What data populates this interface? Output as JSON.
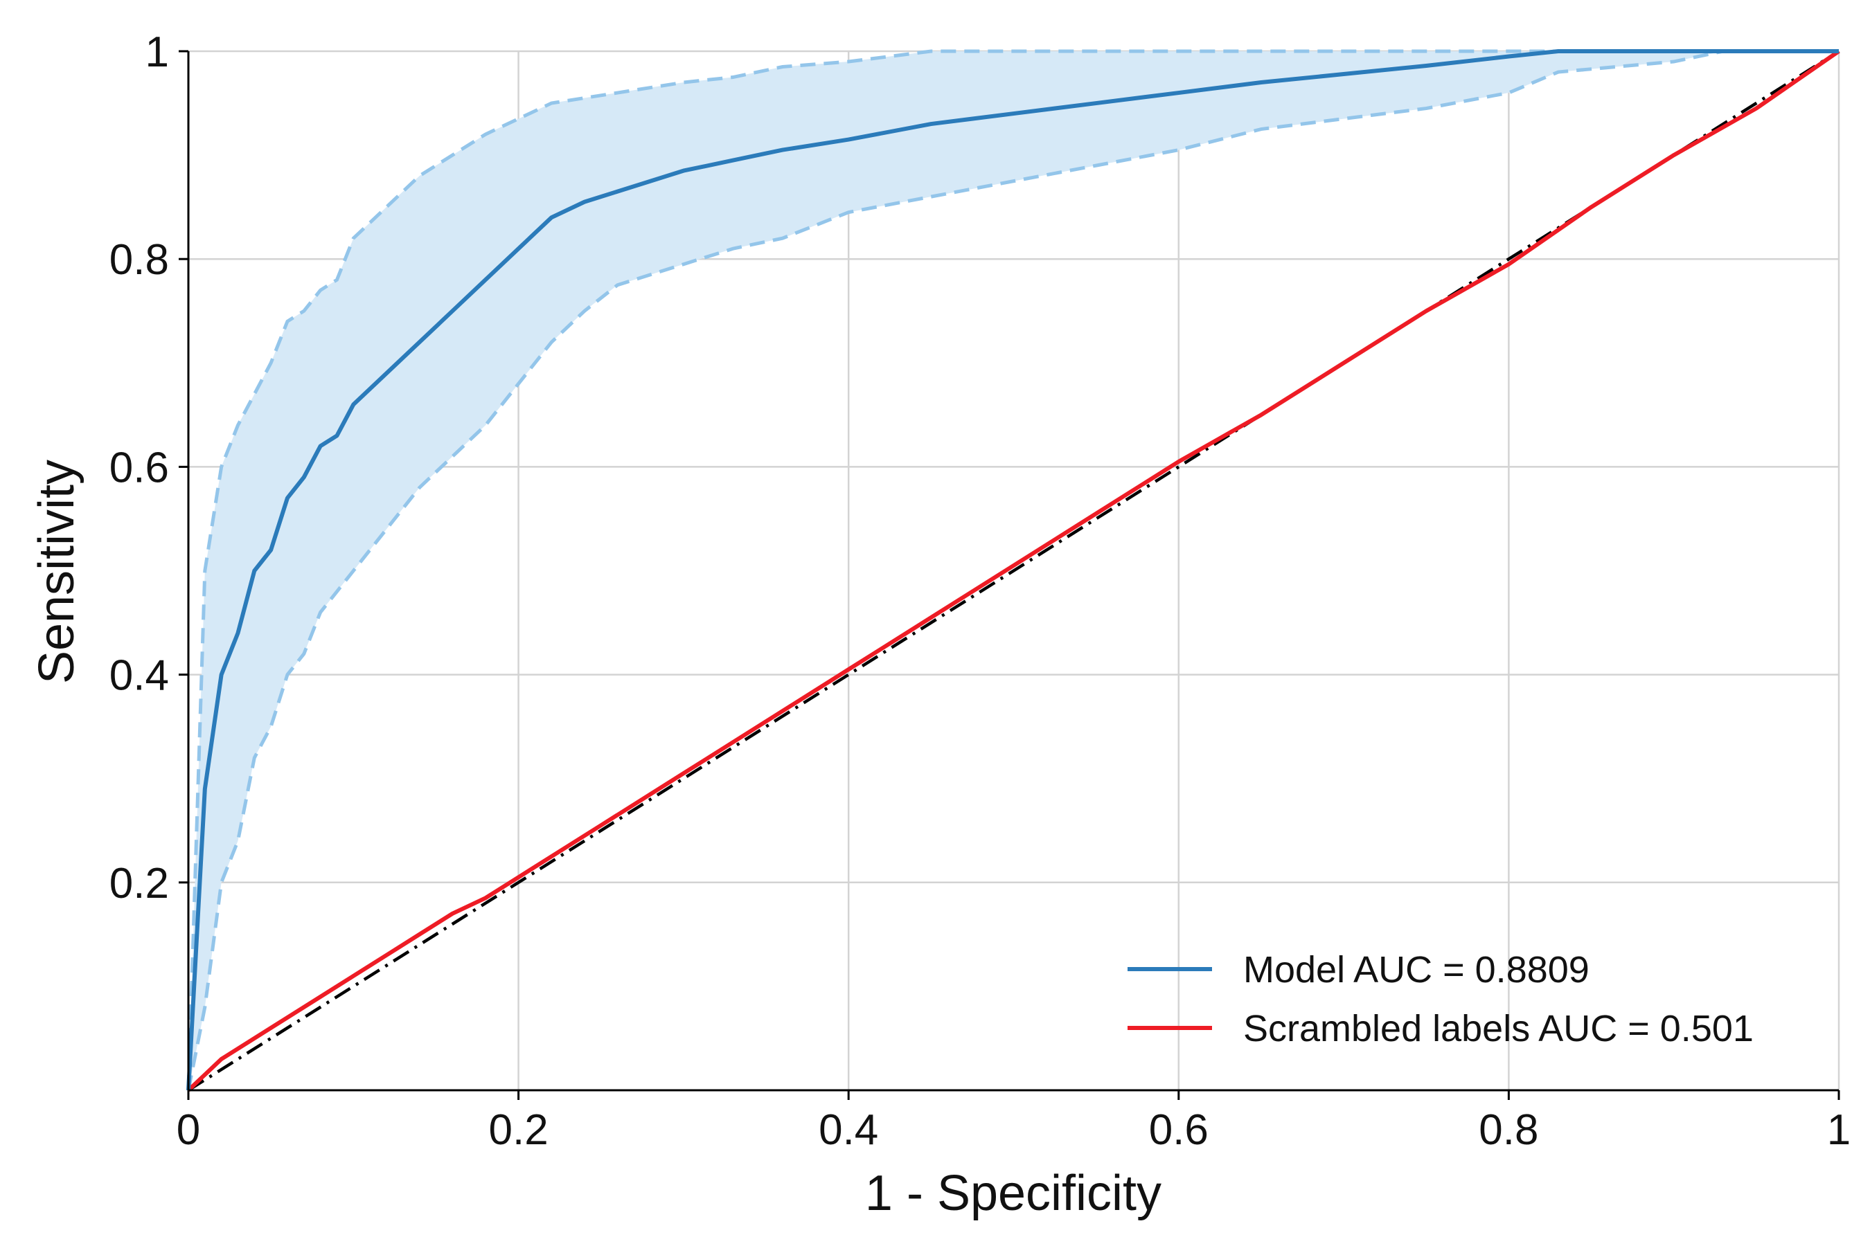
{
  "chart_data": {
    "type": "line",
    "xlabel": "1 - Specificity",
    "ylabel": "Sensitivity",
    "xlim": [
      0,
      1
    ],
    "ylim": [
      0,
      1
    ],
    "x_ticks": [
      0,
      0.2,
      0.4,
      0.6,
      0.8,
      1
    ],
    "x_tick_labels": [
      "0",
      "0.2",
      "0.4",
      "0.6",
      "0.8",
      "1"
    ],
    "y_ticks": [
      0.2,
      0.4,
      0.6,
      0.8,
      1
    ],
    "y_tick_labels": [
      "0.2",
      "0.4",
      "0.6",
      "0.8",
      "1"
    ],
    "grid": true,
    "legend_position": "bottom-right",
    "colors": {
      "model": "#2b7bba",
      "band_fill": "#d6e9f7",
      "band_edge": "#93c5ea",
      "scrambled": "#ee1c25",
      "chance": "#000000",
      "grid": "#d3d3d3"
    },
    "series": [
      {
        "name": "Model AUC = 0.8809",
        "x": [
          0,
          0.01,
          0.02,
          0.03,
          0.04,
          0.05,
          0.06,
          0.07,
          0.08,
          0.09,
          0.1,
          0.12,
          0.14,
          0.16,
          0.18,
          0.2,
          0.22,
          0.24,
          0.26,
          0.28,
          0.3,
          0.33,
          0.36,
          0.4,
          0.45,
          0.5,
          0.55,
          0.6,
          0.65,
          0.7,
          0.75,
          0.8,
          0.83,
          0.9,
          1.0
        ],
        "y": [
          0,
          0.29,
          0.4,
          0.44,
          0.5,
          0.52,
          0.57,
          0.59,
          0.62,
          0.63,
          0.66,
          0.69,
          0.72,
          0.75,
          0.78,
          0.81,
          0.84,
          0.855,
          0.865,
          0.875,
          0.885,
          0.895,
          0.905,
          0.915,
          0.93,
          0.94,
          0.95,
          0.96,
          0.97,
          0.978,
          0.986,
          0.995,
          1.0,
          1.0,
          1.0
        ]
      },
      {
        "name": "Scrambled labels AUC = 0.501",
        "x": [
          0,
          0.02,
          0.04,
          0.06,
          0.08,
          0.1,
          0.12,
          0.14,
          0.16,
          0.18,
          0.2,
          0.25,
          0.3,
          0.35,
          0.4,
          0.45,
          0.5,
          0.55,
          0.6,
          0.65,
          0.7,
          0.75,
          0.8,
          0.85,
          0.9,
          0.95,
          1.0
        ],
        "y": [
          0,
          0.03,
          0.05,
          0.07,
          0.09,
          0.11,
          0.13,
          0.15,
          0.17,
          0.185,
          0.205,
          0.255,
          0.305,
          0.355,
          0.405,
          0.455,
          0.505,
          0.555,
          0.605,
          0.65,
          0.7,
          0.75,
          0.795,
          0.85,
          0.9,
          0.945,
          1.0
        ]
      }
    ],
    "confidence_band": {
      "x": [
        0,
        0.01,
        0.02,
        0.03,
        0.04,
        0.05,
        0.06,
        0.07,
        0.08,
        0.09,
        0.1,
        0.12,
        0.14,
        0.16,
        0.18,
        0.2,
        0.22,
        0.24,
        0.26,
        0.28,
        0.3,
        0.33,
        0.36,
        0.4,
        0.45,
        0.5,
        0.55,
        0.6,
        0.65,
        0.7,
        0.75,
        0.8,
        0.83,
        0.9,
        0.93,
        1.0
      ],
      "upper": [
        0,
        0.5,
        0.6,
        0.64,
        0.67,
        0.7,
        0.74,
        0.75,
        0.77,
        0.78,
        0.82,
        0.85,
        0.88,
        0.9,
        0.92,
        0.935,
        0.95,
        0.955,
        0.96,
        0.965,
        0.97,
        0.975,
        0.985,
        0.99,
        1.0,
        1.0,
        1.0,
        1.0,
        1.0,
        1.0,
        1.0,
        1.0,
        1.0,
        1.0,
        1.0,
        1.0
      ],
      "lower": [
        0,
        0.08,
        0.2,
        0.24,
        0.32,
        0.35,
        0.4,
        0.42,
        0.46,
        0.48,
        0.5,
        0.54,
        0.58,
        0.61,
        0.64,
        0.68,
        0.72,
        0.75,
        0.775,
        0.785,
        0.795,
        0.81,
        0.82,
        0.845,
        0.86,
        0.875,
        0.89,
        0.905,
        0.925,
        0.935,
        0.945,
        0.96,
        0.98,
        0.99,
        1.0,
        1.0
      ]
    },
    "chance_line": {
      "x": [
        0,
        1
      ],
      "y": [
        0,
        1
      ]
    }
  }
}
